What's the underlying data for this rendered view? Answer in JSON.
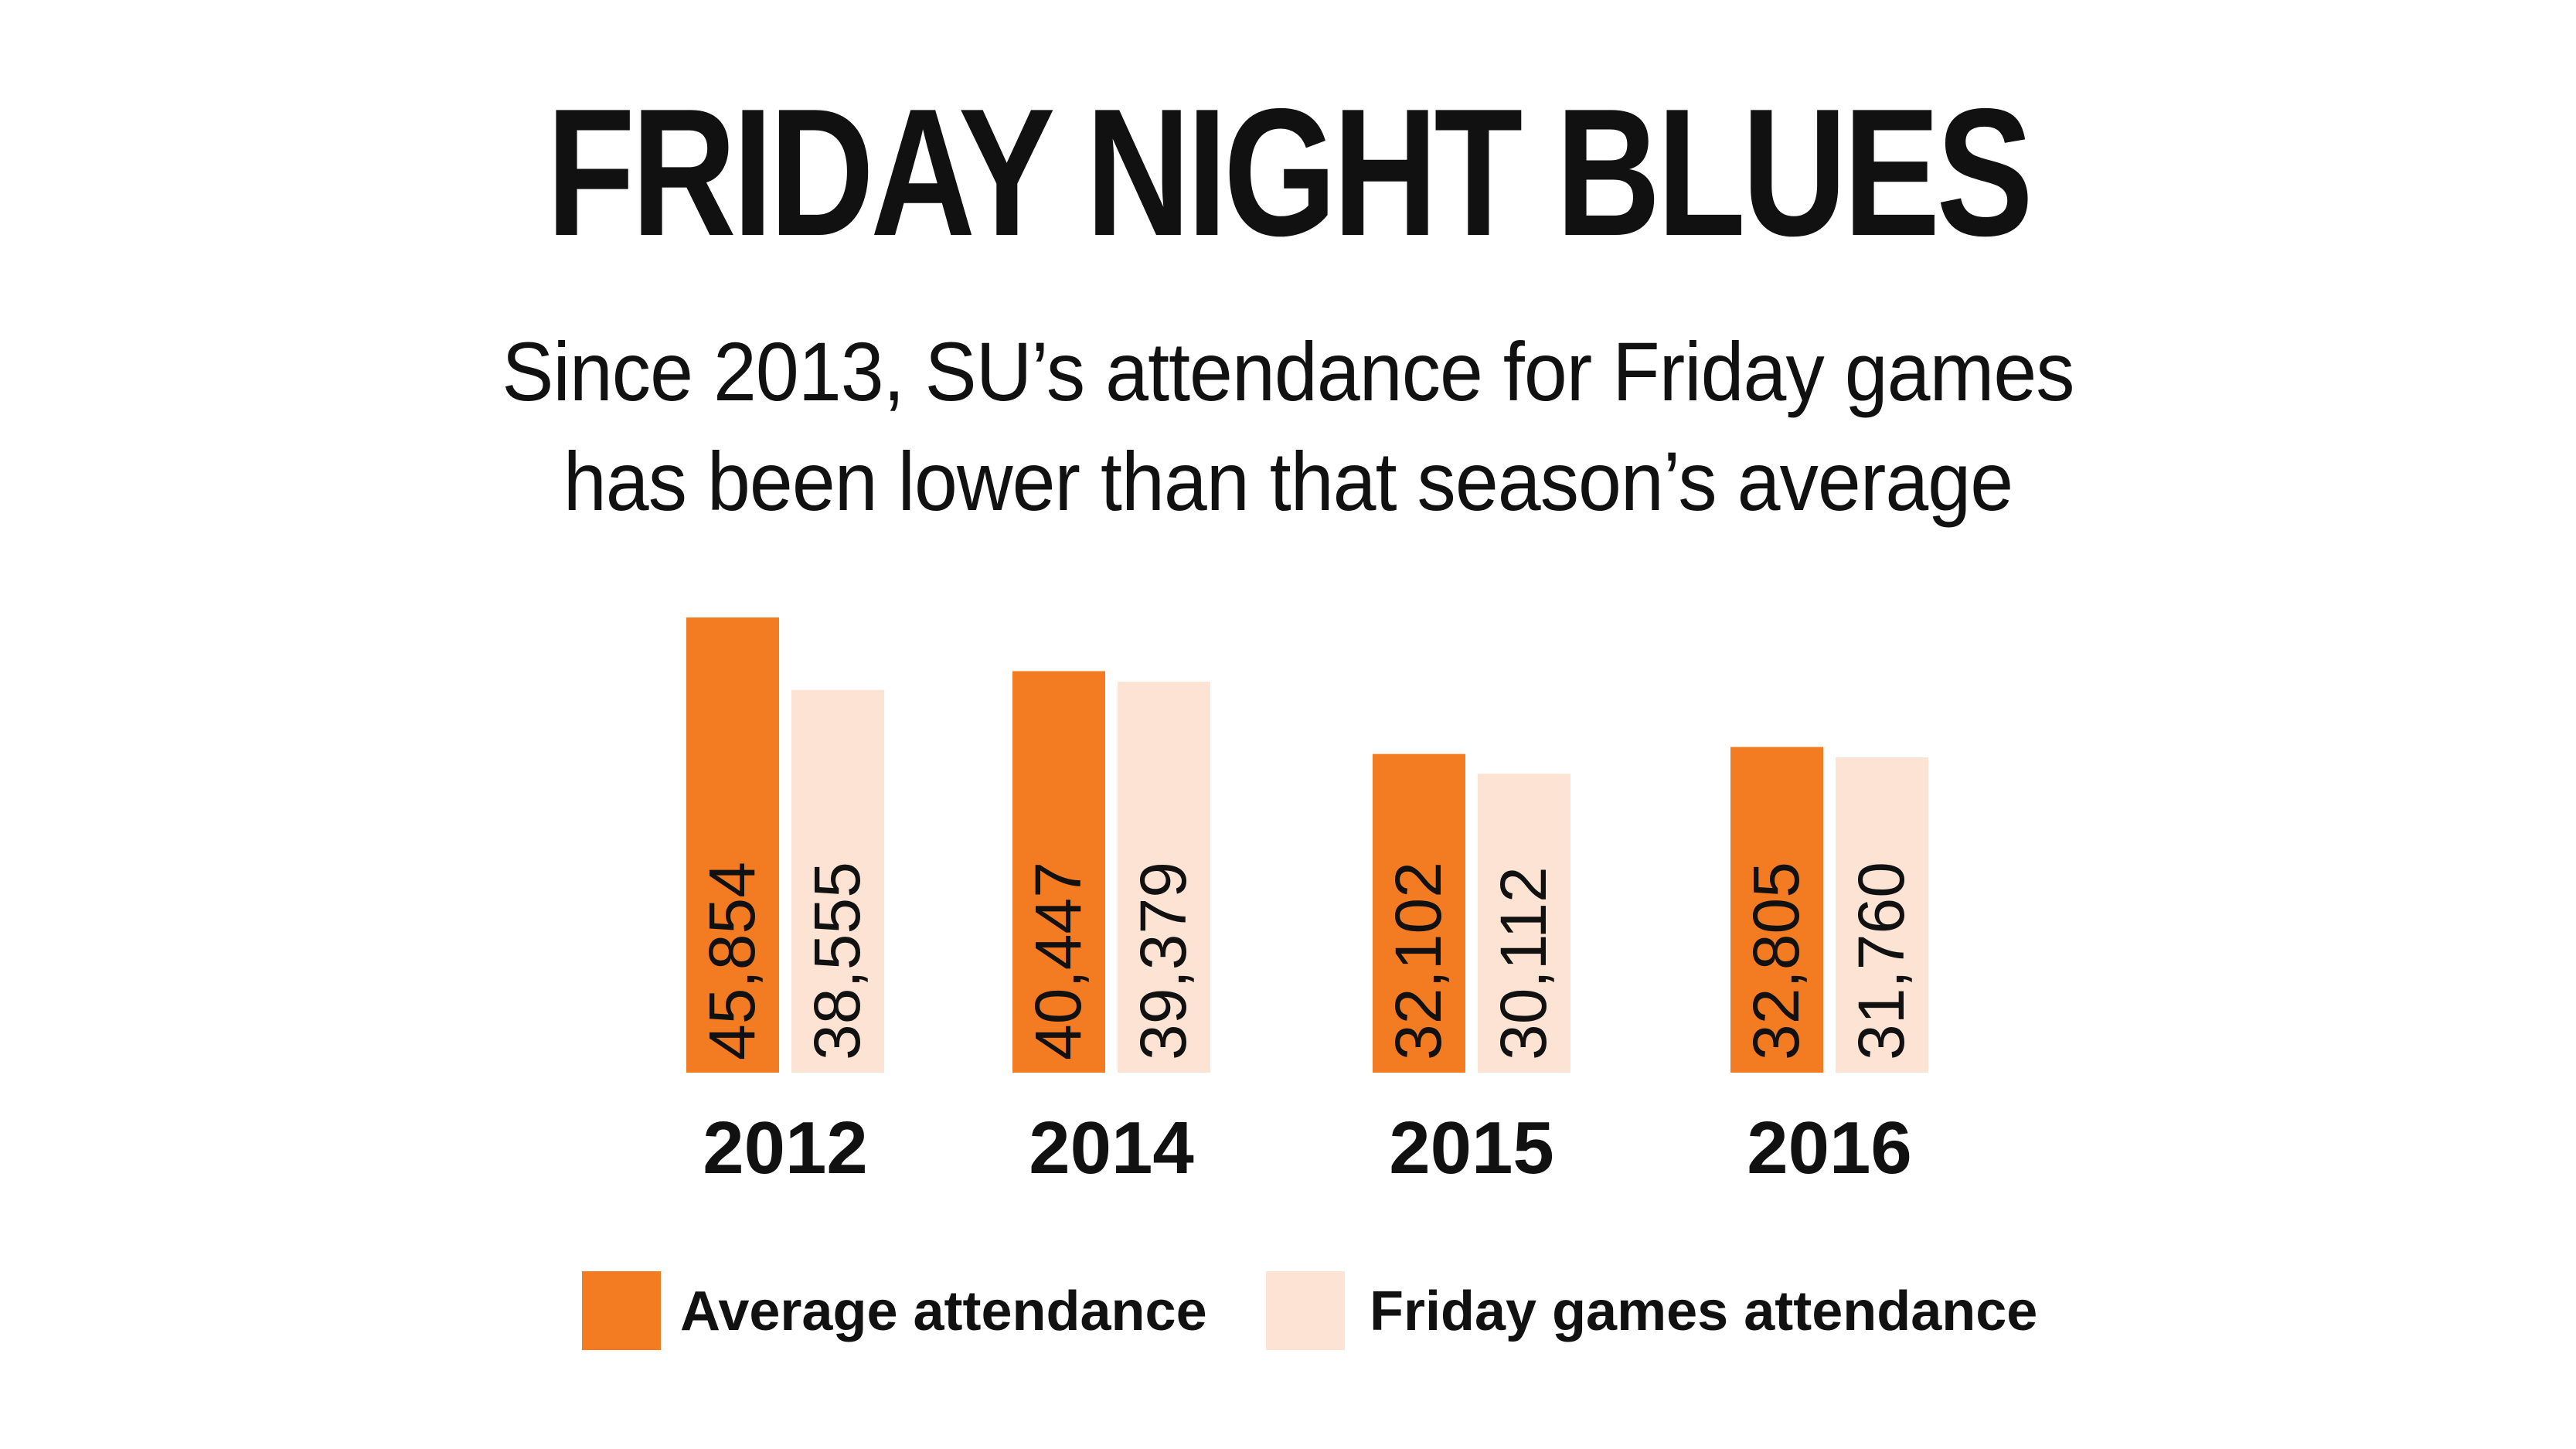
{
  "chart_data": {
    "type": "bar",
    "title": "FRIDAY NIGHT BLUES",
    "subtitle_lines": [
      "Since 2013, SU’s attendance for Friday games",
      "has been lower than that season’s average"
    ],
    "categories": [
      "2012",
      "2014",
      "2015",
      "2016"
    ],
    "series": [
      {
        "name": "Average attendance",
        "color": "#F37B22",
        "values": [
          45854,
          40447,
          32102,
          32805
        ],
        "labels": [
          "45,854",
          "40,447",
          "32,102",
          "32,805"
        ]
      },
      {
        "name": "Friday games attendance",
        "color": "#FDE3D3",
        "values": [
          38555,
          39379,
          30112,
          31760
        ],
        "labels": [
          "38,555",
          "39,379",
          "30,112",
          "31,760"
        ]
      }
    ],
    "legend_position": "bottom",
    "grid": false
  }
}
